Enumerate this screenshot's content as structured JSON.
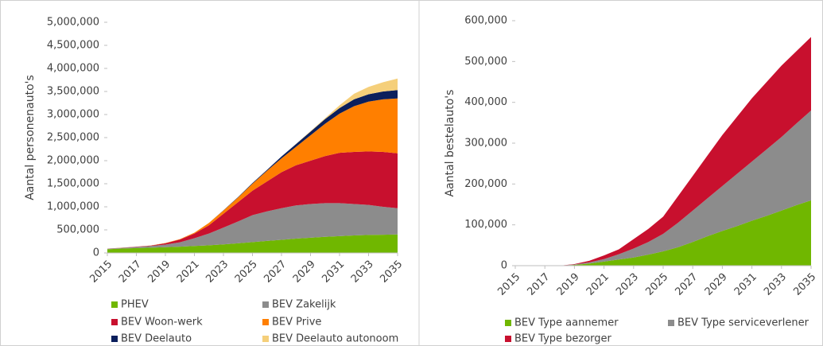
{
  "chart_data": [
    {
      "type": "area",
      "stacked": true,
      "y_label": "Aantal personenauto's",
      "legend": "bottom",
      "x": [
        2015,
        2016,
        2017,
        2018,
        2019,
        2020,
        2021,
        2022,
        2023,
        2024,
        2025,
        2026,
        2027,
        2028,
        2029,
        2030,
        2031,
        2032,
        2033,
        2034,
        2035
      ],
      "xlim": [
        2015,
        2035
      ],
      "xticks": [
        2015,
        2017,
        2019,
        2021,
        2023,
        2025,
        2027,
        2029,
        2031,
        2033,
        2035
      ],
      "ylim": [
        0,
        5000000
      ],
      "yticks": [
        0,
        {
          "value": 500000,
          "label": "500,000"
        },
        {
          "value": 1000000,
          "label": "1,000,000"
        },
        {
          "value": 1500000,
          "label": "1,500,000"
        },
        {
          "value": 2000000,
          "label": "2,000,000"
        },
        {
          "value": 2500000,
          "label": "2,500,000"
        },
        {
          "value": 3000000,
          "label": "3,000,000"
        },
        {
          "value": 3500000,
          "label": "3,500,000"
        },
        {
          "value": 4000000,
          "label": "4,000,000"
        },
        {
          "value": 4500000,
          "label": "4,500,000"
        },
        {
          "value": 5000000,
          "label": "5,000,000"
        }
      ],
      "series": [
        {
          "name": "PHEV",
          "color": "#70b700",
          "values": [
            80000,
            95000,
            105000,
            115000,
            125000,
            135000,
            150000,
            165000,
            185000,
            210000,
            235000,
            260000,
            285000,
            310000,
            330000,
            350000,
            365000,
            380000,
            390000,
            395000,
            400000
          ]
        },
        {
          "name": "BEV Zakelijk",
          "color": "#8c8c8c",
          "values": [
            10000,
            15000,
            25000,
            35000,
            55000,
            95000,
            170000,
            255000,
            365000,
            470000,
            585000,
            640000,
            685000,
            720000,
            730000,
            730000,
            715000,
            680000,
            650000,
            605000,
            570000
          ]
        },
        {
          "name": "BEV Woon-werk",
          "color": "#c8102e",
          "values": [
            2000,
            3000,
            5000,
            10000,
            30000,
            60000,
            100000,
            180000,
            300000,
            420000,
            530000,
            650000,
            780000,
            870000,
            940000,
            1020000,
            1090000,
            1130000,
            1160000,
            1190000,
            1190000
          ]
        },
        {
          "name": "BEV Prive",
          "color": "#ff7f00",
          "values": [
            1000,
            1000,
            1000,
            2000,
            5000,
            10000,
            20000,
            50000,
            70000,
            100000,
            150000,
            230000,
            300000,
            400000,
            550000,
            700000,
            850000,
            990000,
            1080000,
            1140000,
            1190000
          ]
        },
        {
          "name": "BEV Deelauto",
          "color": "#0b1f5c",
          "values": [
            0,
            0,
            0,
            0,
            0,
            0,
            0,
            0,
            5000,
            10000,
            15000,
            20000,
            40000,
            60000,
            80000,
            100000,
            120000,
            150000,
            160000,
            170000,
            180000
          ]
        },
        {
          "name": "BEV Deelauto autonoom",
          "color": "#f5cf7a",
          "values": [
            0,
            0,
            0,
            0,
            0,
            0,
            0,
            0,
            0,
            0,
            0,
            0,
            0,
            5000,
            10000,
            20000,
            60000,
            120000,
            160000,
            200000,
            250000
          ]
        }
      ]
    },
    {
      "type": "area",
      "stacked": true,
      "y_label": "Aantal bestelauto's",
      "legend": "bottom",
      "x": [
        2015,
        2016,
        2017,
        2018,
        2019,
        2020,
        2021,
        2022,
        2023,
        2024,
        2025,
        2026,
        2027,
        2028,
        2029,
        2030,
        2031,
        2032,
        2033,
        2034,
        2035
      ],
      "xlim": [
        2015,
        2035
      ],
      "xticks": [
        2015,
        2017,
        2019,
        2021,
        2023,
        2025,
        2027,
        2029,
        2031,
        2033,
        2035
      ],
      "ylim": [
        0,
        600000
      ],
      "yticks": [
        0,
        {
          "value": 100000,
          "label": "100,000"
        },
        {
          "value": 200000,
          "label": "200,000"
        },
        {
          "value": 300000,
          "label": "300,000"
        },
        {
          "value": 400000,
          "label": "400,000"
        },
        {
          "value": 500000,
          "label": "500,000"
        },
        {
          "value": 600000,
          "label": "600,000"
        }
      ],
      "series": [
        {
          "name": "BEV Type aannemer",
          "color": "#70b700",
          "values": [
            0,
            0,
            0,
            0,
            2000,
            5000,
            10000,
            15000,
            20000,
            27000,
            35000,
            45000,
            58000,
            72000,
            85000,
            97000,
            110000,
            122000,
            135000,
            148000,
            160000
          ]
        },
        {
          "name": "BEV Type serviceverlener",
          "color": "#8c8c8c",
          "values": [
            0,
            0,
            0,
            0,
            1000,
            3000,
            6000,
            13000,
            22000,
            31000,
            43000,
            60000,
            77000,
            93000,
            110000,
            128000,
            145000,
            163000,
            180000,
            200000,
            220000
          ]
        },
        {
          "name": "BEV Type bezorger",
          "color": "#c8102e",
          "values": [
            0,
            0,
            0,
            0,
            1000,
            4000,
            9000,
            12000,
            23000,
            32000,
            42000,
            65000,
            85000,
            105000,
            125000,
            140000,
            155000,
            165000,
            175000,
            177000,
            180000
          ]
        }
      ]
    }
  ]
}
